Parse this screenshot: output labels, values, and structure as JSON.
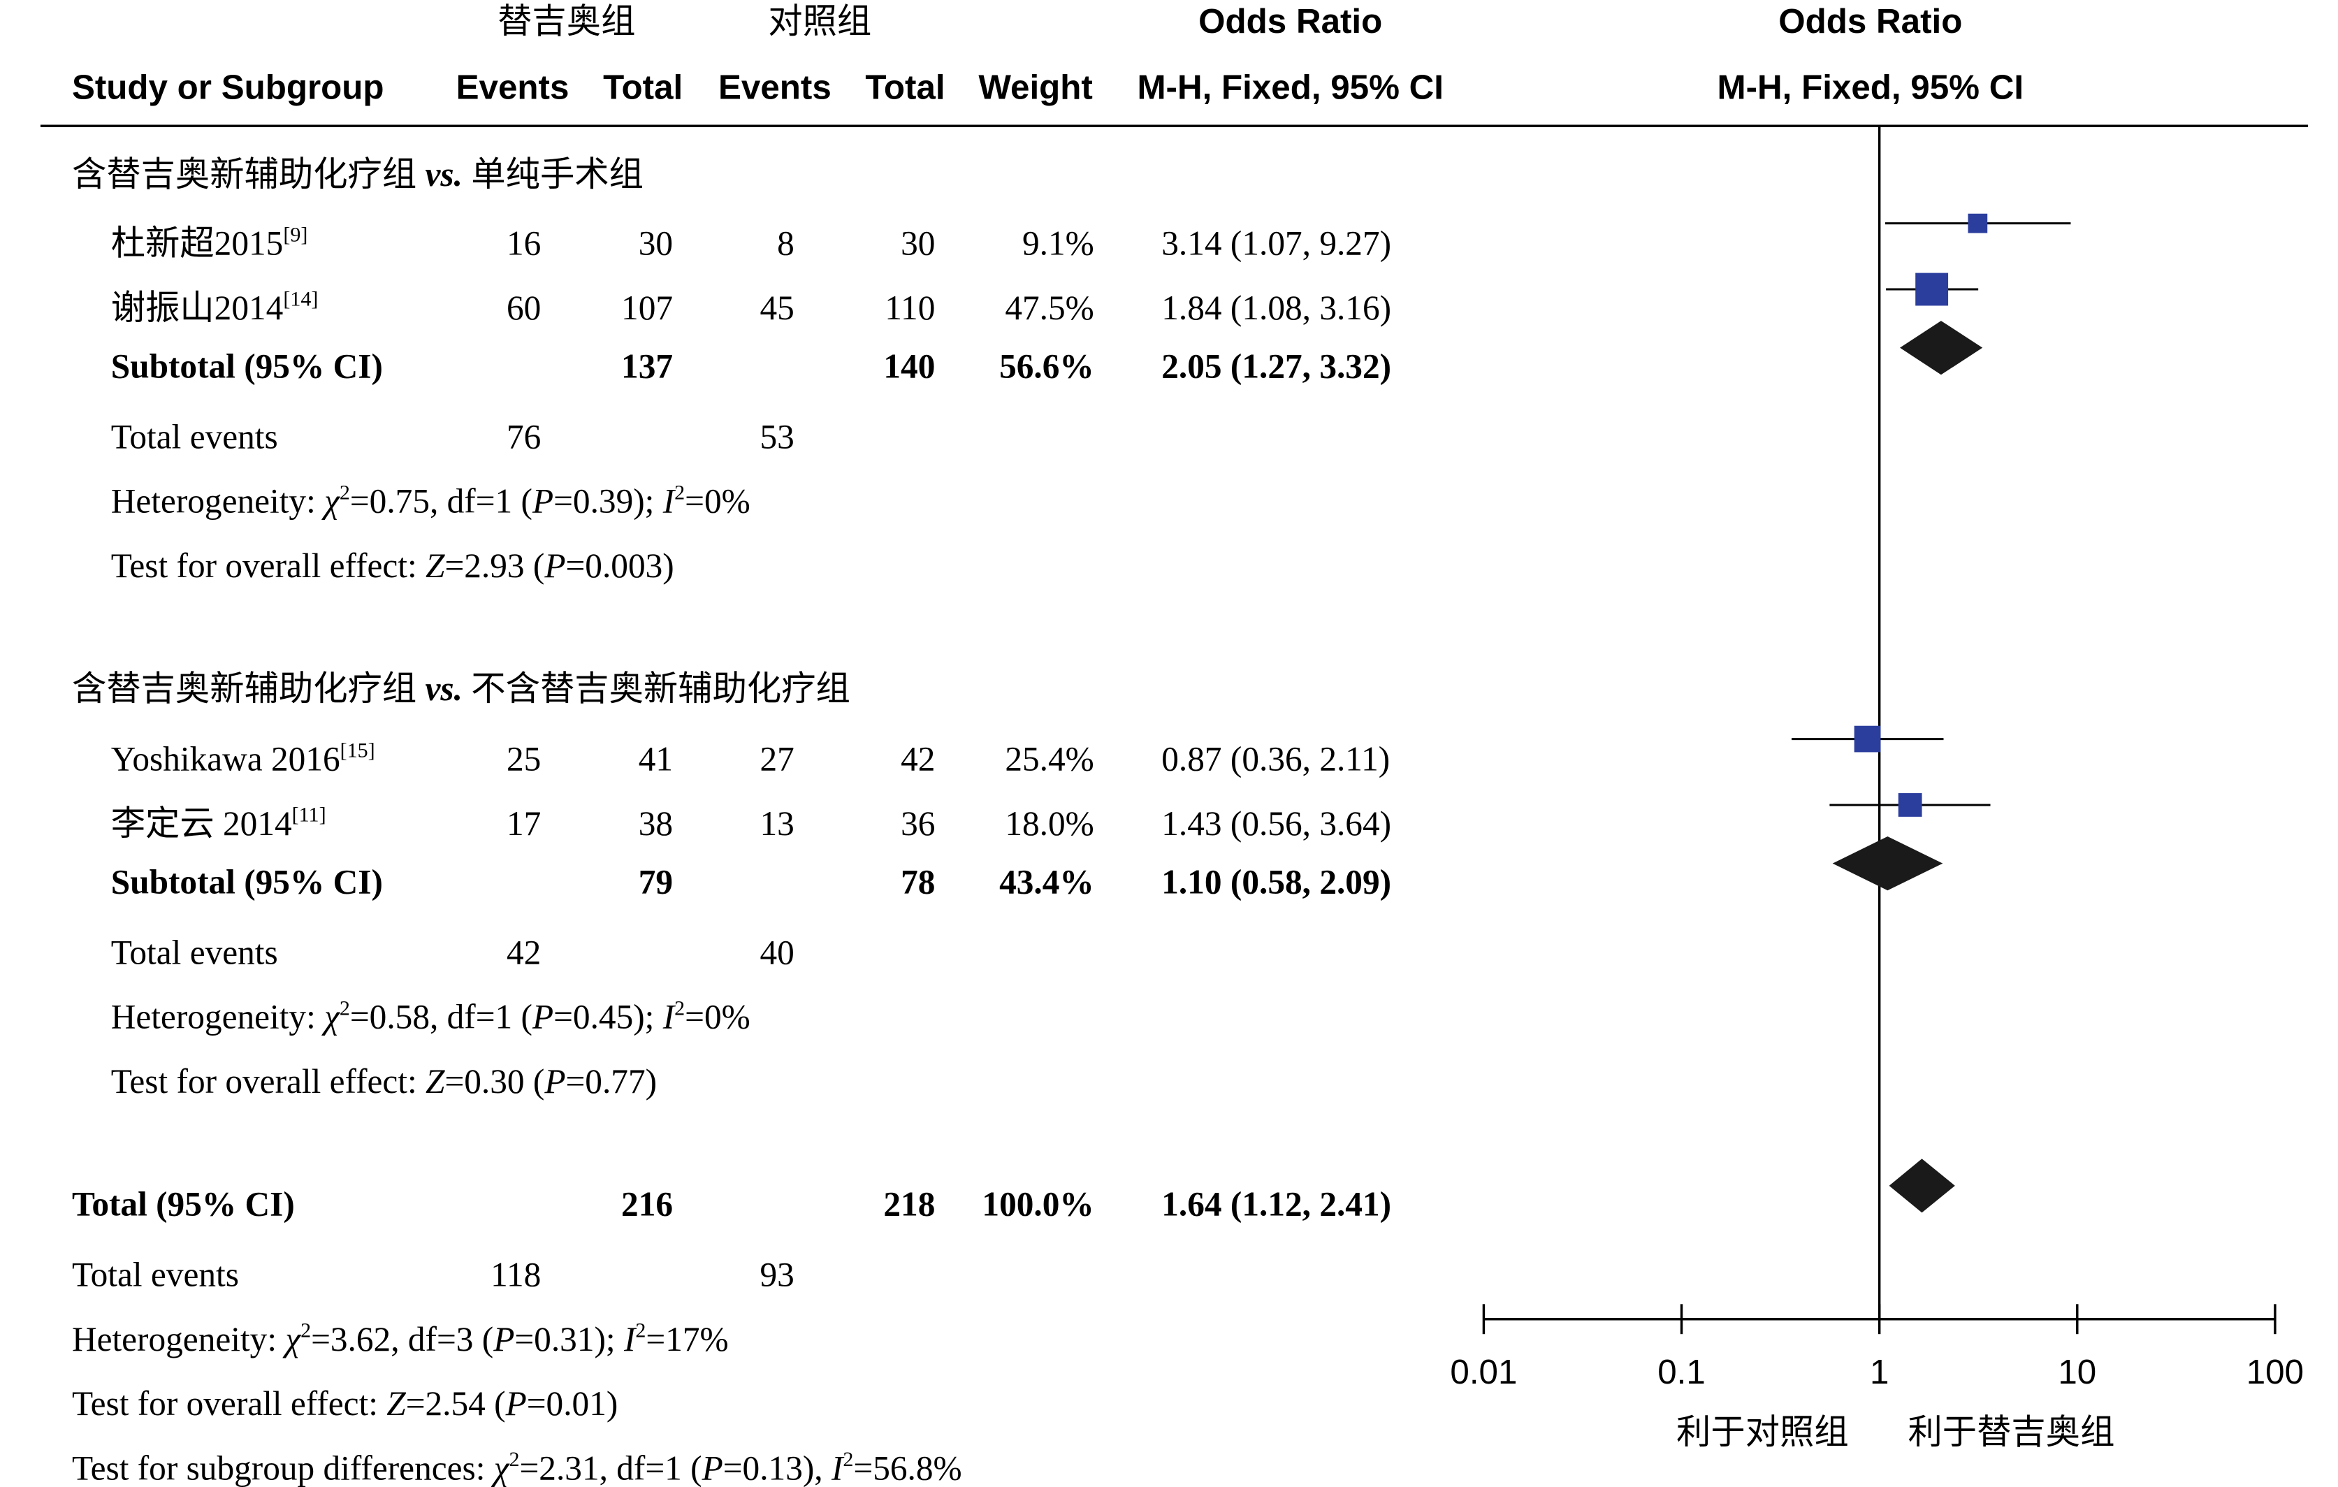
{
  "header": {
    "group1": "替吉奥组",
    "group2": "对照组",
    "or_title": "Odds Ratio",
    "or_title_plot": "Odds Ratio",
    "study_col": "Study or Subgroup",
    "events1": "Events",
    "total1": "Total",
    "events2": "Events",
    "total2": "Total",
    "weight": "Weight",
    "method": "M-H, Fixed, 95% CI",
    "method_plot": "M-H, Fixed, 95% CI"
  },
  "subgroups": [
    {
      "title": "含替吉奥新辅助化疗组 vs. 单纯手术组",
      "title_pre": "含替吉奥新辅助化疗组 ",
      "title_vs": "vs.",
      "title_post": " 单纯手术组",
      "studies": [
        {
          "name": "杜新超2015",
          "ref": "[9]",
          "e1": "16",
          "t1": "30",
          "e2": "8",
          "t2": "30",
          "weight": "9.1%",
          "ci": "3.14 (1.07, 9.27)",
          "or": 3.14,
          "lo": 1.07,
          "hi": 9.27,
          "w": 9.1
        },
        {
          "name": "谢振山2014",
          "ref": "[14]",
          "e1": "60",
          "t1": "107",
          "e2": "45",
          "t2": "110",
          "weight": "47.5%",
          "ci": "1.84 (1.08, 3.16)",
          "or": 1.84,
          "lo": 1.08,
          "hi": 3.16,
          "w": 47.5
        }
      ],
      "subtotal": {
        "label": "Subtotal (95% CI)",
        "t1": "137",
        "t2": "140",
        "weight": "56.6%",
        "ci": "2.05 (1.27, 3.32)",
        "or": 2.05,
        "lo": 1.27,
        "hi": 3.32
      },
      "events": {
        "label": "Total events",
        "e1": "76",
        "e2": "53"
      },
      "het": {
        "pre": "Heterogeneity: ",
        "chi": "χ",
        "sup": "2",
        "stat": "=0.75, df=1 (",
        "p": "P",
        "pval": "=0.39); ",
        "i": "I",
        "isup": "2",
        "ival": "=0%"
      },
      "test": {
        "pre": "Test for overall effect: ",
        "z": "Z",
        "zval": "=2.93 (",
        "p": "P",
        "pval": "=0.003)"
      }
    },
    {
      "title": "含替吉奥新辅助化疗组 vs. 不含替吉奥新辅助化疗组",
      "title_pre": "含替吉奥新辅助化疗组 ",
      "title_vs": "vs.",
      "title_post": " 不含替吉奥新辅助化疗组",
      "studies": [
        {
          "name": "Yoshikawa 2016",
          "ref": "[15]",
          "e1": "25",
          "t1": "41",
          "e2": "27",
          "t2": "42",
          "weight": "25.4%",
          "ci": "0.87 (0.36, 2.11)",
          "or": 0.87,
          "lo": 0.36,
          "hi": 2.11,
          "w": 25.4
        },
        {
          "name": "李定云 2014",
          "ref": "[11]",
          "e1": "17",
          "t1": "38",
          "e2": "13",
          "t2": "36",
          "weight": "18.0%",
          "ci": "1.43 (0.56, 3.64)",
          "or": 1.43,
          "lo": 0.56,
          "hi": 3.64,
          "w": 18.0
        }
      ],
      "subtotal": {
        "label": "Subtotal (95% CI)",
        "t1": "79",
        "t2": "78",
        "weight": "43.4%",
        "ci": "1.10 (0.58, 2.09)",
        "or": 1.1,
        "lo": 0.58,
        "hi": 2.09
      },
      "events": {
        "label": "Total events",
        "e1": "42",
        "e2": "40"
      },
      "het": {
        "pre": "Heterogeneity: ",
        "chi": "χ",
        "sup": "2",
        "stat": "=0.58, df=1 (",
        "p": "P",
        "pval": "=0.45); ",
        "i": "I",
        "isup": "2",
        "ival": "=0%"
      },
      "test": {
        "pre": "Test for overall effect: ",
        "z": "Z",
        "zval": "=0.30 (",
        "p": "P",
        "pval": "=0.77)"
      }
    }
  ],
  "total": {
    "label": "Total (95% CI)",
    "t1": "216",
    "t2": "218",
    "weight": "100.0%",
    "ci": "1.64 (1.12, 2.41)",
    "or": 1.64,
    "lo": 1.12,
    "hi": 2.41
  },
  "total_events": {
    "label": "Total events",
    "e1": "118",
    "e2": "93"
  },
  "total_het": {
    "pre": "Heterogeneity: ",
    "chi": "χ",
    "sup": "2",
    "stat": "=3.62, df=3 (",
    "p": "P",
    "pval": "=0.31); ",
    "i": "I",
    "isup": "2",
    "ival": "=17%"
  },
  "total_test": {
    "pre": "Test for overall effect: ",
    "z": "Z",
    "zval": "=2.54 (",
    "p": "P",
    "pval": "=0.01)"
  },
  "subgroup_diff": {
    "pre": "Test for subgroup differences: ",
    "chi": "χ",
    "sup": "2",
    "stat": "=2.31, df=1 (",
    "p": "P",
    "pval": "=0.13), ",
    "i": "I",
    "isup": "2",
    "ival": "=56.8%"
  },
  "axis": {
    "ticks": [
      "0.01",
      "0.1",
      "1",
      "10",
      "100"
    ],
    "favours_left": "利于对照组",
    "favours_right": "利于替吉奥组"
  },
  "colors": {
    "study_marker": "#2b3e9e",
    "diamond": "#1a1a1a",
    "line": "#000000"
  },
  "chart_data": {
    "type": "forest",
    "xscale": "log",
    "xlim": [
      0.01,
      100
    ],
    "xticks": [
      0.01,
      0.1,
      1,
      10,
      100
    ],
    "title": "Odds Ratio",
    "xlabel_left": "利于对照组",
    "xlabel_right": "利于替吉奥组",
    "series": [
      {
        "name": "杜新超2015",
        "or": 3.14,
        "lo": 1.07,
        "hi": 9.27,
        "weight": 9.1
      },
      {
        "name": "谢振山2014",
        "or": 1.84,
        "lo": 1.08,
        "hi": 3.16,
        "weight": 47.5
      },
      {
        "name": "Subtotal (95% CI)",
        "or": 2.05,
        "lo": 1.27,
        "hi": 3.32,
        "weight": 56.6
      },
      {
        "name": "Yoshikawa 2016",
        "or": 0.87,
        "lo": 0.36,
        "hi": 2.11,
        "weight": 25.4
      },
      {
        "name": "李定云 2014",
        "or": 1.43,
        "lo": 0.56,
        "hi": 3.64,
        "weight": 18.0
      },
      {
        "name": "Subtotal (95% CI)",
        "or": 1.1,
        "lo": 0.58,
        "hi": 2.09,
        "weight": 43.4
      },
      {
        "name": "Total (95% CI)",
        "or": 1.64,
        "lo": 1.12,
        "hi": 2.41,
        "weight": 100.0
      }
    ]
  }
}
